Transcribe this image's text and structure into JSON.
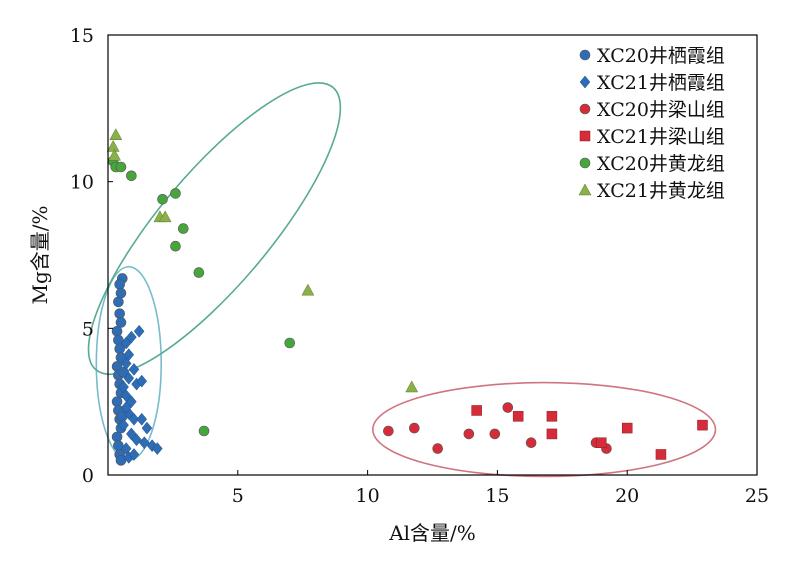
{
  "chart_data": {
    "type": "scatter",
    "xlabel": "Al含量/%",
    "ylabel": "Mg含量/%",
    "xlim": [
      0,
      25
    ],
    "ylim": [
      0,
      15
    ],
    "xticks": [
      5,
      10,
      15,
      20,
      25
    ],
    "yticks": [
      0,
      5,
      10,
      15
    ],
    "grid": false,
    "legend_position": "top-right",
    "series": [
      {
        "name": "XC20井栖霞组",
        "marker": "circle",
        "color": "#2e6db5",
        "points": [
          [
            0.55,
            6.7
          ],
          [
            0.45,
            6.5
          ],
          [
            0.5,
            6.2
          ],
          [
            0.4,
            5.9
          ],
          [
            0.45,
            5.5
          ],
          [
            0.5,
            5.2
          ],
          [
            0.35,
            4.9
          ],
          [
            0.4,
            4.6
          ],
          [
            0.45,
            4.3
          ],
          [
            0.5,
            4.0
          ],
          [
            0.35,
            3.7
          ],
          [
            0.4,
            3.4
          ],
          [
            0.45,
            3.1
          ],
          [
            0.5,
            2.8
          ],
          [
            0.35,
            2.5
          ],
          [
            0.4,
            2.2
          ],
          [
            0.45,
            1.9
          ],
          [
            0.5,
            1.6
          ],
          [
            0.35,
            1.3
          ],
          [
            0.4,
            1.0
          ],
          [
            0.45,
            0.7
          ],
          [
            0.5,
            0.5
          ],
          [
            0.55,
            2.0
          ],
          [
            0.6,
            3.5
          ]
        ]
      },
      {
        "name": "XC21井栖霞组",
        "marker": "diamond",
        "color": "#2e6db5",
        "points": [
          [
            0.7,
            4.5
          ],
          [
            0.9,
            4.7
          ],
          [
            1.2,
            4.9
          ],
          [
            0.8,
            4.1
          ],
          [
            0.7,
            3.8
          ],
          [
            1.0,
            3.6
          ],
          [
            0.8,
            3.3
          ],
          [
            1.1,
            3.1
          ],
          [
            1.3,
            3.2
          ],
          [
            0.7,
            2.7
          ],
          [
            0.9,
            2.5
          ],
          [
            0.8,
            2.1
          ],
          [
            1.0,
            1.9
          ],
          [
            1.3,
            1.9
          ],
          [
            1.5,
            1.6
          ],
          [
            0.9,
            1.4
          ],
          [
            1.1,
            1.2
          ],
          [
            1.4,
            1.1
          ],
          [
            1.7,
            1.0
          ],
          [
            1.9,
            0.9
          ],
          [
            0.7,
            0.9
          ],
          [
            0.8,
            0.6
          ],
          [
            1.0,
            0.7
          ],
          [
            0.6,
            1.7
          ],
          [
            0.7,
            2.3
          ],
          [
            0.6,
            3.0
          ]
        ]
      },
      {
        "name": "XC20井梁山组",
        "marker": "circle",
        "color": "#d62c3a",
        "points": [
          [
            10.8,
            1.5
          ],
          [
            11.8,
            1.6
          ],
          [
            12.7,
            0.9
          ],
          [
            13.9,
            1.4
          ],
          [
            14.9,
            1.4
          ],
          [
            15.4,
            2.3
          ],
          [
            16.3,
            1.1
          ],
          [
            18.8,
            1.1
          ],
          [
            19.2,
            0.9
          ]
        ]
      },
      {
        "name": "XC21井梁山组",
        "marker": "square",
        "color": "#d62c3a",
        "points": [
          [
            14.2,
            2.2
          ],
          [
            15.8,
            2.0
          ],
          [
            17.1,
            2.0
          ],
          [
            17.1,
            1.4
          ],
          [
            19.0,
            1.1
          ],
          [
            20.0,
            1.6
          ],
          [
            21.3,
            0.7
          ],
          [
            22.9,
            1.7
          ]
        ]
      },
      {
        "name": "XC20井黄龙组",
        "marker": "circle",
        "color": "#46a63c",
        "points": [
          [
            0.2,
            10.7
          ],
          [
            0.3,
            10.5
          ],
          [
            0.5,
            10.5
          ],
          [
            0.9,
            10.2
          ],
          [
            2.1,
            9.4
          ],
          [
            2.6,
            9.6
          ],
          [
            2.9,
            8.4
          ],
          [
            2.6,
            7.8
          ],
          [
            3.5,
            6.9
          ],
          [
            7.0,
            4.5
          ],
          [
            3.7,
            1.5
          ]
        ]
      },
      {
        "name": "XC21井黄龙组",
        "marker": "triangle",
        "color": "#8ab04a",
        "points": [
          [
            0.3,
            11.6
          ],
          [
            0.2,
            11.2
          ],
          [
            0.25,
            10.9
          ],
          [
            2.0,
            8.8
          ],
          [
            2.2,
            8.8
          ],
          [
            7.7,
            6.3
          ],
          [
            11.7,
            3.0
          ]
        ]
      }
    ],
    "ellipses": [
      {
        "cx": 0.8,
        "cy": 3.8,
        "rx": 1.25,
        "ry": 3.3,
        "rotation_deg": 0,
        "color": "#77bccd"
      },
      {
        "cx": 4.1,
        "cy": 8.4,
        "rx": 7.1,
        "ry": 1.9,
        "rotation_deg": -50,
        "color": "#58aa94"
      },
      {
        "cx": 16.8,
        "cy": 1.55,
        "rx": 6.6,
        "ry": 1.6,
        "rotation_deg": 0,
        "color": "#cf7580"
      }
    ]
  }
}
